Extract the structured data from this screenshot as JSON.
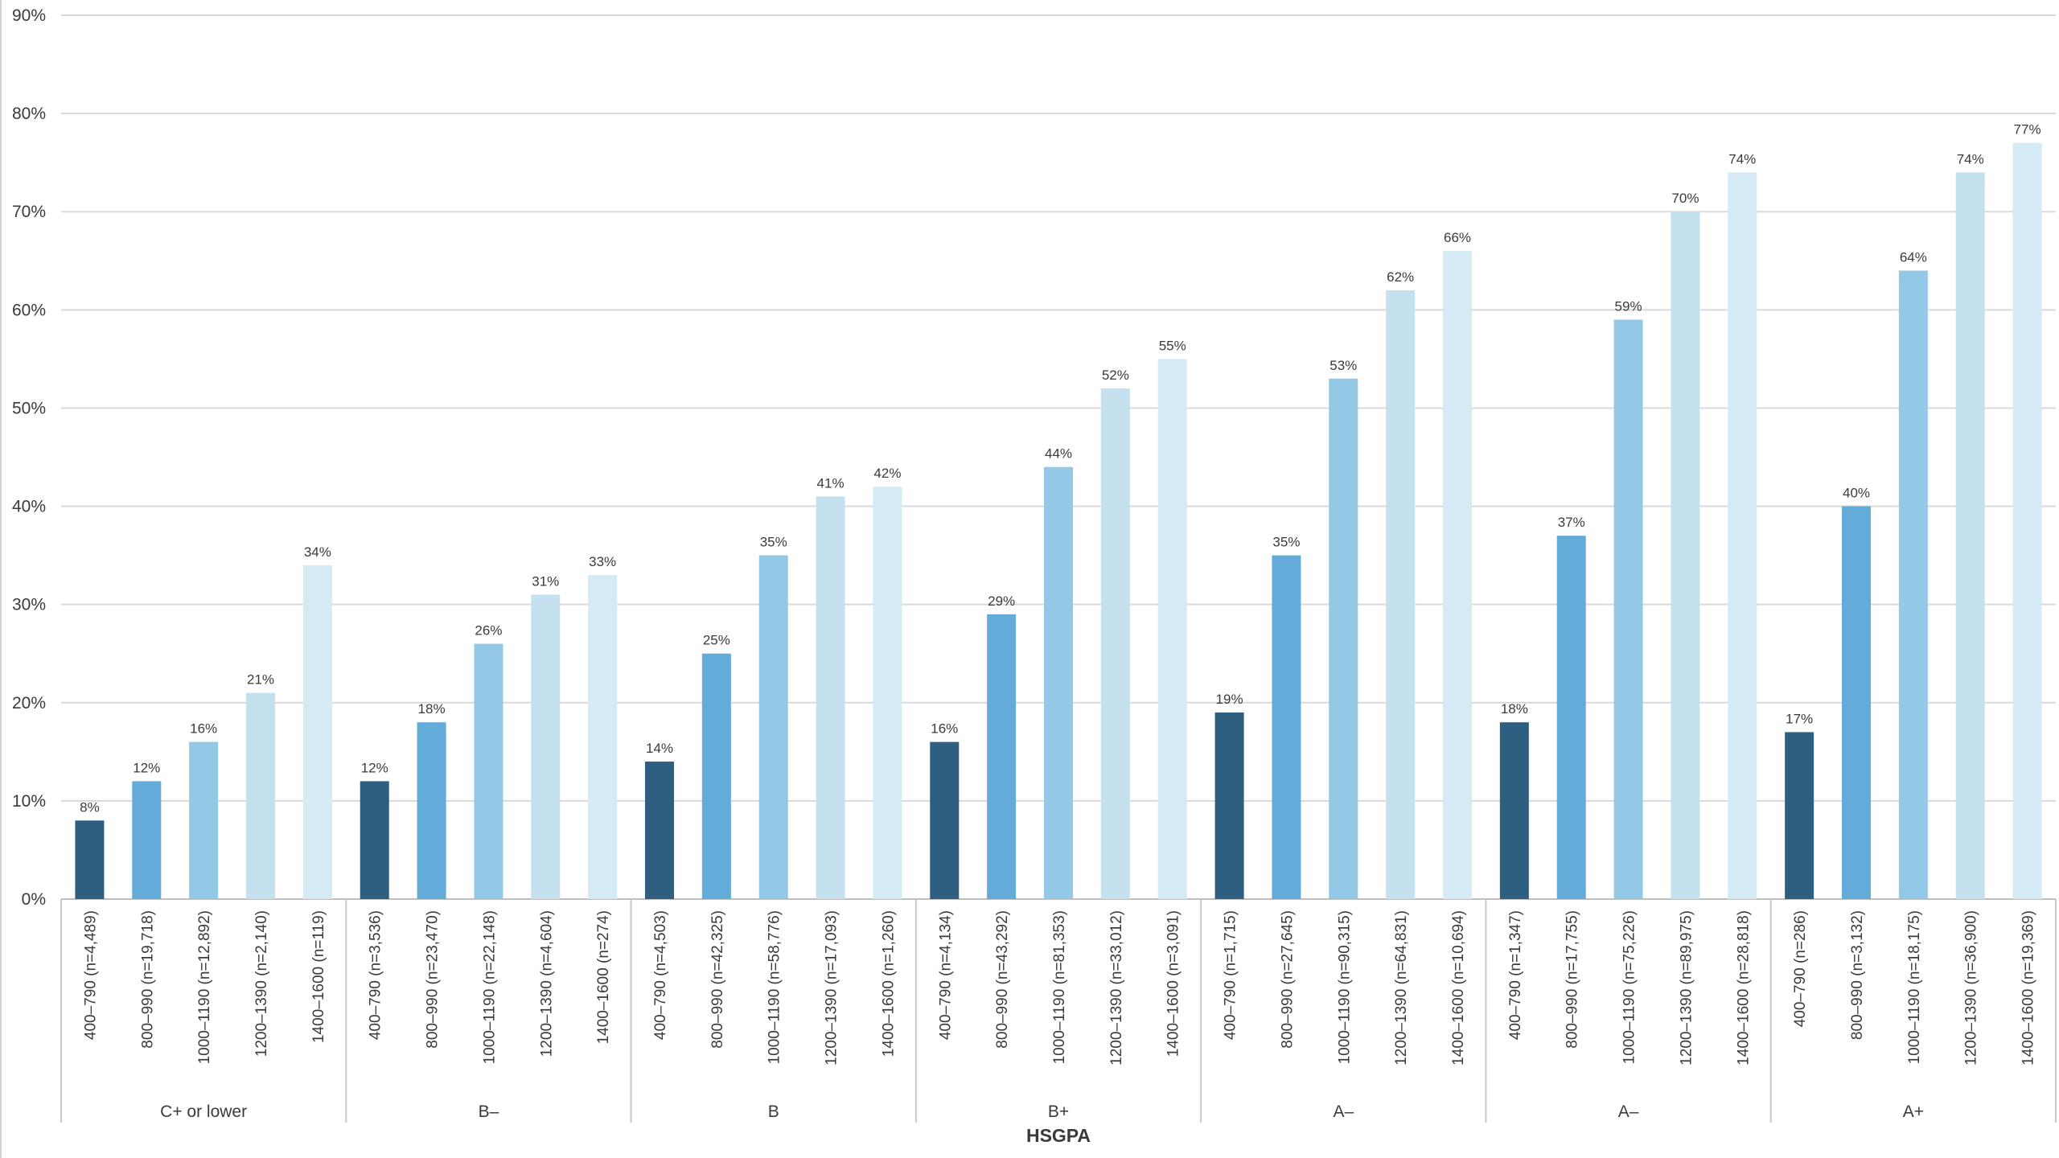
{
  "chart_data": {
    "type": "bar",
    "xlabel": "HSGPA",
    "ylabel": "",
    "ylim": [
      0,
      90
    ],
    "yticks": [
      "0%",
      "10%",
      "20%",
      "30%",
      "40%",
      "50%",
      "60%",
      "70%",
      "80%",
      "90%"
    ],
    "grid": true,
    "legend": "none",
    "series_colors": [
      "#2e5f80",
      "#63acd9",
      "#93c9e6",
      "#c5e1ef",
      "#d4ebf6"
    ],
    "groups": [
      {
        "label": "C+ or lower",
        "categories": [
          "400–790 (n=4,489)",
          "800–990 (n=19,718)",
          "1000–1190 (n=12,892)",
          "1200–1390 (n=2,140)",
          "1400–1600 (n=119)"
        ],
        "values": [
          8,
          12,
          16,
          21,
          34
        ],
        "value_labels": [
          "8%",
          "12%",
          "16%",
          "21%",
          "34%"
        ]
      },
      {
        "label": "B–",
        "categories": [
          "400–790 (n=3,536)",
          "800–990 (n=23,470)",
          "1000–1190 (n=22,148)",
          "1200–1390 (n=4,604)",
          "1400–1600 (n=274)"
        ],
        "values": [
          12,
          18,
          26,
          31,
          33
        ],
        "value_labels": [
          "12%",
          "18%",
          "26%",
          "31%",
          "33%"
        ]
      },
      {
        "label": "B",
        "categories": [
          "400–790 (n=4,503)",
          "800–990 (n=42,325)",
          "1000–1190 (n=58,776)",
          "1200–1390 (n=17,093)",
          "1400–1600 (n=1,260)"
        ],
        "values": [
          14,
          25,
          35,
          41,
          42
        ],
        "value_labels": [
          "14%",
          "25%",
          "35%",
          "41%",
          "42%"
        ]
      },
      {
        "label": "B+",
        "categories": [
          "400–790 (n=4,134)",
          "800–990 (n=43,292)",
          "1000–1190 (n=81,353)",
          "1200–1390 (n=33,012)",
          "1400–1600 (n=3,091)"
        ],
        "values": [
          16,
          29,
          44,
          52,
          55
        ],
        "value_labels": [
          "16%",
          "29%",
          "44%",
          "52%",
          "55%"
        ]
      },
      {
        "label": "A–",
        "categories": [
          "400–790 (n=1,715)",
          "800–990 (n=27,645)",
          "1000–1190 (n=90,315)",
          "1200–1390 (n=64,831)",
          "1400–1600 (n=10,694)"
        ],
        "values": [
          19,
          35,
          53,
          62,
          66
        ],
        "value_labels": [
          "19%",
          "35%",
          "53%",
          "62%",
          "66%"
        ]
      },
      {
        "label": "A–",
        "categories": [
          "400–790 (n=1,347)",
          "800–990 (n=17,755)",
          "1000–1190 (n=75,226)",
          "1200–1390 (n=89,975)",
          "1400–1600 (n=28,818)"
        ],
        "values": [
          18,
          37,
          59,
          70,
          74
        ],
        "value_labels": [
          "18%",
          "37%",
          "59%",
          "70%",
          "74%"
        ]
      },
      {
        "label": "A+",
        "categories": [
          "400–790 (n=286)",
          "800–990 (n=3,132)",
          "1000–1190 (n=18,175)",
          "1200–1390 (n=36,900)",
          "1400–1600 (n=19,369)"
        ],
        "values": [
          17,
          40,
          64,
          74,
          77
        ],
        "value_labels": [
          "17%",
          "40%",
          "64%",
          "74%",
          "77%"
        ]
      }
    ]
  }
}
